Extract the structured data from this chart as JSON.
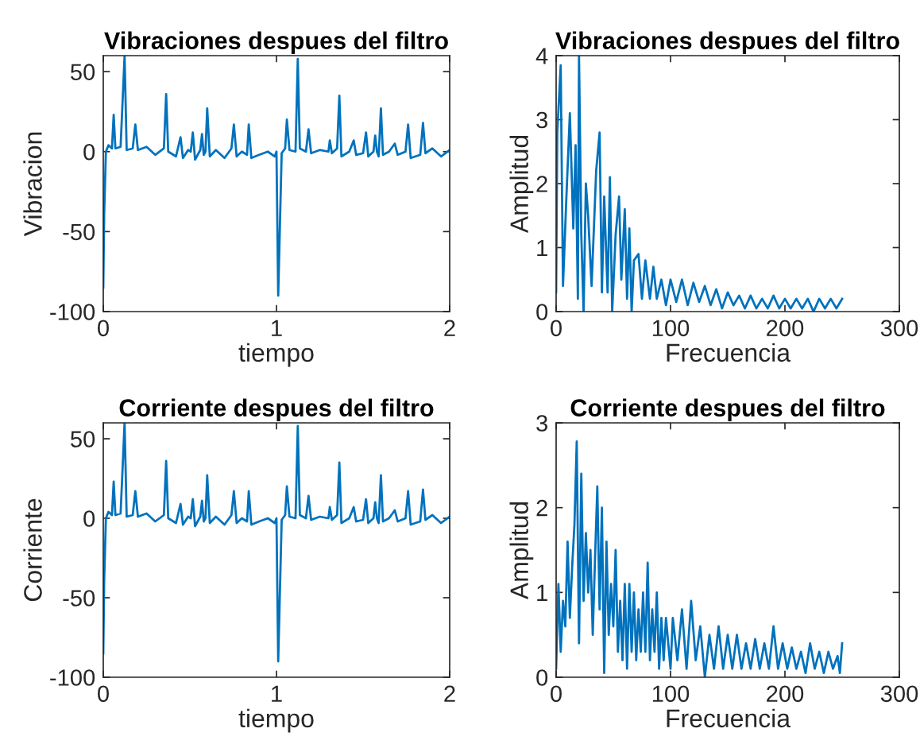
{
  "chart_data": [
    {
      "type": "line",
      "title": "Vibraciones despues del filtro",
      "xlabel": "tiempo",
      "ylabel": "Vibracion",
      "xlim": [
        0,
        2
      ],
      "ylim": [
        -100,
        60
      ],
      "xticks": [
        0,
        1,
        2
      ],
      "yticks": [
        -100,
        -50,
        0,
        50
      ],
      "series": [
        {
          "color": "#0072bd",
          "x": [
            0,
            0.005,
            0.015,
            0.03,
            0.05,
            0.06,
            0.07,
            0.1,
            0.123,
            0.135,
            0.17,
            0.185,
            0.2,
            0.25,
            0.3,
            0.35,
            0.363,
            0.375,
            0.42,
            0.446,
            0.46,
            0.49,
            0.505,
            0.517,
            0.53,
            0.56,
            0.57,
            0.58,
            0.59,
            0.6,
            0.615,
            0.65,
            0.7,
            0.74,
            0.754,
            0.77,
            0.8,
            0.83,
            0.84,
            0.855,
            0.9,
            0.95,
            0.99,
            1.0,
            1.01,
            1.03,
            1.05,
            1.06,
            1.075,
            1.11,
            1.123,
            1.135,
            1.17,
            1.185,
            1.2,
            1.25,
            1.3,
            1.308,
            1.32,
            1.35,
            1.363,
            1.375,
            1.42,
            1.446,
            1.46,
            1.5,
            1.517,
            1.53,
            1.56,
            1.57,
            1.58,
            1.59,
            1.603,
            1.615,
            1.65,
            1.683,
            1.7,
            1.745,
            1.76,
            1.775,
            1.83,
            1.846,
            1.86,
            1.9,
            1.95,
            2.0
          ],
          "values": [
            -85,
            -40,
            0,
            4,
            2,
            23,
            2,
            3,
            60,
            1,
            2,
            17,
            1,
            3,
            -2,
            2,
            36,
            0,
            -3,
            9,
            -4,
            1,
            0,
            12,
            -5,
            1,
            11,
            -2,
            0,
            27,
            -3,
            1,
            -4,
            2,
            17,
            -3,
            0,
            -2,
            17,
            -4,
            -2,
            0,
            -3,
            0,
            -90,
            -1,
            2,
            20,
            1,
            0,
            58,
            2,
            0,
            14,
            -1,
            1,
            0,
            7,
            -1,
            2,
            35,
            -3,
            0,
            7,
            -2,
            -1,
            12,
            -3,
            0,
            10,
            0,
            -3,
            27,
            -2,
            0,
            5,
            -2,
            0,
            17,
            -4,
            -2,
            18,
            -1,
            2,
            -3,
            1
          ]
        }
      ]
    },
    {
      "type": "line",
      "title": "Vibraciones despues del filtro",
      "xlabel": "Frecuencia",
      "ylabel": "Amplitud",
      "xlim": [
        0,
        300
      ],
      "ylim": [
        0,
        4
      ],
      "xticks": [
        0,
        100,
        200,
        300
      ],
      "yticks": [
        0,
        1,
        2,
        3,
        4
      ],
      "series": [
        {
          "color": "#0072bd",
          "x": [
            0,
            1,
            4,
            6,
            9,
            12,
            15,
            17,
            19,
            20,
            22,
            24,
            26,
            28,
            31,
            35,
            38,
            40,
            42,
            45,
            47,
            49,
            52,
            55,
            57,
            60,
            62,
            64,
            66,
            68,
            72,
            75,
            78,
            82,
            85,
            88,
            92,
            96,
            100,
            105,
            110,
            115,
            120,
            125,
            130,
            135,
            140,
            145,
            150,
            155,
            160,
            165,
            170,
            175,
            180,
            185,
            190,
            195,
            200,
            205,
            210,
            215,
            220,
            225,
            230,
            235,
            240,
            245,
            250
          ],
          "values": [
            0.3,
            2.8,
            3.85,
            0.4,
            1.8,
            3.1,
            1.3,
            2.6,
            0.2,
            4.0,
            1.2,
            0.0,
            2.0,
            1.5,
            0.4,
            2.2,
            2.8,
            0.3,
            1.8,
            0.3,
            2.1,
            0.0,
            1.2,
            1.8,
            0.5,
            1.6,
            0.2,
            1.3,
            0.0,
            0.8,
            0.9,
            0.2,
            0.8,
            0.2,
            0.7,
            0.2,
            0.5,
            0.1,
            0.5,
            0.15,
            0.5,
            0.1,
            0.45,
            0.15,
            0.4,
            0.1,
            0.35,
            0.05,
            0.3,
            0.1,
            0.25,
            0.05,
            0.25,
            0.05,
            0.2,
            0.05,
            0.25,
            0.05,
            0.2,
            0.05,
            0.2,
            0.05,
            0.2,
            0.0,
            0.2,
            0.05,
            0.2,
            0.05,
            0.2
          ]
        }
      ]
    },
    {
      "type": "line",
      "title": "Corriente despues del filtro",
      "xlabel": "tiempo",
      "ylabel": "Corriente",
      "xlim": [
        0,
        2
      ],
      "ylim": [
        -100,
        60
      ],
      "xticks": [
        0,
        1,
        2
      ],
      "yticks": [
        -100,
        -50,
        0,
        50
      ],
      "series": [
        {
          "color": "#0072bd",
          "x": [
            0,
            0.005,
            0.015,
            0.03,
            0.05,
            0.06,
            0.07,
            0.1,
            0.123,
            0.135,
            0.17,
            0.185,
            0.2,
            0.25,
            0.3,
            0.35,
            0.363,
            0.375,
            0.42,
            0.446,
            0.46,
            0.49,
            0.505,
            0.517,
            0.53,
            0.56,
            0.57,
            0.58,
            0.59,
            0.6,
            0.615,
            0.65,
            0.7,
            0.74,
            0.754,
            0.77,
            0.8,
            0.83,
            0.84,
            0.855,
            0.9,
            0.95,
            0.99,
            1.0,
            1.01,
            1.03,
            1.05,
            1.06,
            1.075,
            1.11,
            1.123,
            1.135,
            1.17,
            1.185,
            1.2,
            1.25,
            1.3,
            1.308,
            1.32,
            1.35,
            1.363,
            1.375,
            1.42,
            1.446,
            1.46,
            1.5,
            1.517,
            1.53,
            1.56,
            1.57,
            1.58,
            1.59,
            1.603,
            1.615,
            1.65,
            1.683,
            1.7,
            1.745,
            1.76,
            1.775,
            1.83,
            1.846,
            1.86,
            1.9,
            1.95,
            2.0
          ],
          "values": [
            -85,
            -40,
            0,
            4,
            2,
            23,
            2,
            3,
            60,
            1,
            2,
            17,
            1,
            3,
            -2,
            2,
            36,
            0,
            -3,
            9,
            -4,
            1,
            0,
            12,
            -5,
            1,
            11,
            -2,
            0,
            27,
            -3,
            1,
            -4,
            2,
            17,
            -3,
            0,
            -2,
            17,
            -4,
            -2,
            0,
            -3,
            0,
            -90,
            -1,
            2,
            20,
            1,
            0,
            58,
            2,
            0,
            14,
            -1,
            1,
            0,
            7,
            -1,
            2,
            35,
            -3,
            0,
            7,
            -2,
            -1,
            12,
            -3,
            0,
            10,
            0,
            -3,
            27,
            -2,
            0,
            5,
            -2,
            0,
            17,
            -4,
            -2,
            18,
            -1,
            2,
            -3,
            1
          ]
        }
      ]
    },
    {
      "type": "line",
      "title": "Corriente despues del filtro",
      "xlabel": "Frecuencia",
      "ylabel": "Amplitud",
      "xlim": [
        0,
        300
      ],
      "ylim": [
        0,
        3
      ],
      "xticks": [
        0,
        100,
        200,
        300
      ],
      "yticks": [
        0,
        1,
        2,
        3
      ],
      "series": [
        {
          "color": "#0072bd",
          "x": [
            0,
            2,
            4,
            6,
            8,
            10,
            12,
            14,
            16,
            18,
            20,
            22,
            24,
            26,
            28,
            30,
            32,
            34,
            36,
            38,
            40,
            42,
            44,
            46,
            48,
            50,
            52,
            54,
            56,
            58,
            60,
            62,
            64,
            66,
            68,
            70,
            72,
            74,
            76,
            78,
            80,
            82,
            84,
            86,
            88,
            90,
            92,
            94,
            96,
            100,
            102,
            106,
            110,
            114,
            118,
            122,
            126,
            130,
            134,
            138,
            142,
            146,
            150,
            154,
            158,
            162,
            166,
            170,
            174,
            178,
            182,
            186,
            190,
            194,
            198,
            202,
            206,
            210,
            214,
            218,
            222,
            226,
            230,
            234,
            238,
            242,
            246,
            248,
            250
          ],
          "values": [
            0.1,
            1.1,
            0.3,
            0.9,
            0.6,
            1.6,
            0.7,
            1.3,
            1.8,
            2.78,
            0.4,
            2.4,
            0.9,
            1.7,
            1.0,
            1.5,
            0.5,
            1.4,
            2.25,
            0.8,
            2.0,
            0.05,
            1.6,
            0.5,
            1.1,
            0.6,
            1.5,
            0.3,
            0.9,
            0.2,
            1.1,
            0.1,
            1.1,
            0.3,
            1.0,
            0.2,
            0.8,
            0.3,
            1.0,
            0.3,
            1.35,
            0.2,
            0.8,
            0.3,
            1.0,
            0.1,
            0.7,
            0.2,
            0.7,
            0.1,
            0.7,
            0.2,
            0.8,
            0.1,
            0.9,
            0.2,
            0.6,
            0.0,
            0.5,
            0.1,
            0.6,
            0.1,
            0.5,
            0.1,
            0.5,
            0.1,
            0.4,
            0.1,
            0.45,
            0.1,
            0.4,
            0.1,
            0.6,
            0.1,
            0.4,
            0.1,
            0.35,
            0.1,
            0.3,
            0.05,
            0.4,
            0.1,
            0.3,
            0.05,
            0.3,
            0.1,
            0.25,
            0.05,
            0.4
          ]
        }
      ]
    }
  ]
}
